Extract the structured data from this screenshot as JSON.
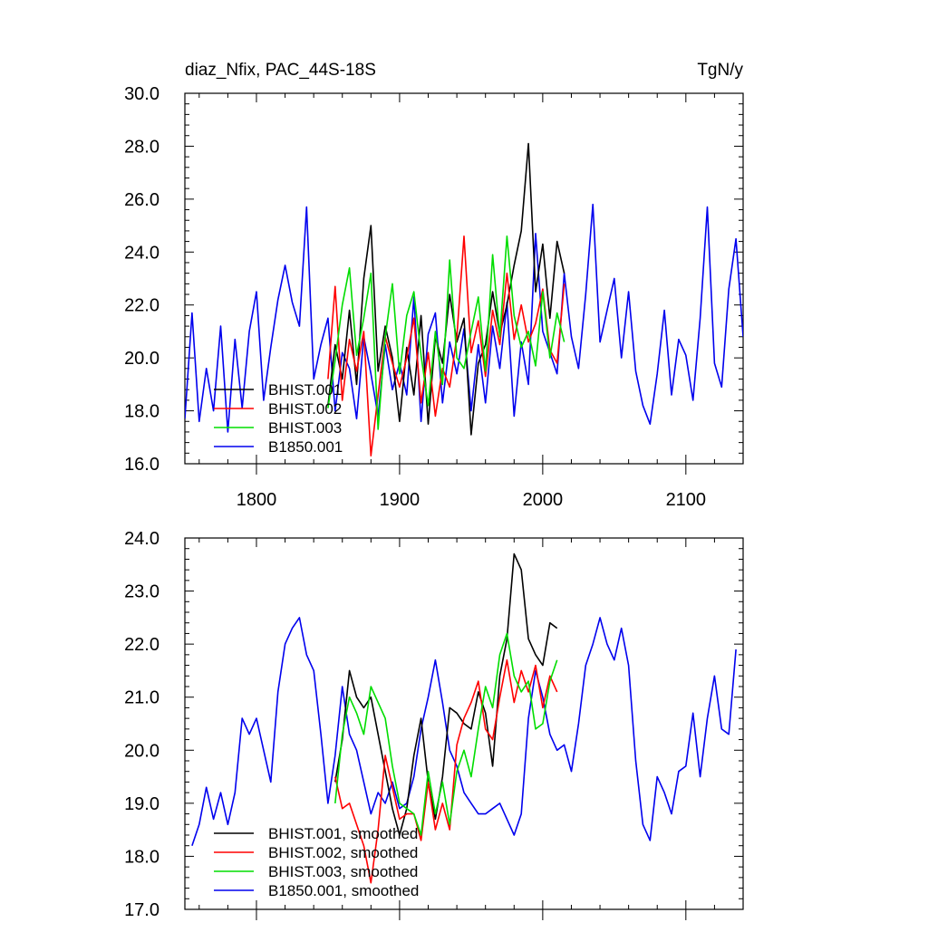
{
  "chart_data": [
    {
      "type": "line",
      "title": "diaz_Nfix, PAC_44S-18S",
      "units": "TgN/y",
      "xlim": [
        1750,
        2140
      ],
      "ylim": [
        16.0,
        30.0
      ],
      "xticks": [
        1800,
        1900,
        2000,
        2100
      ],
      "xtick_labels": [
        "1800",
        "1900",
        "2000",
        "2100"
      ],
      "yticks": [
        16,
        18,
        20,
        22,
        24,
        26,
        28,
        30
      ],
      "ytick_labels": [
        "16.0",
        "18.0",
        "20.0",
        "22.0",
        "24.0",
        "26.0",
        "28.0",
        "30.0"
      ],
      "legend": [
        "BHIST.001",
        "BHIST.002",
        "BHIST.003",
        "B1850.001"
      ],
      "legend_position": "bottom-left",
      "series": [
        {
          "name": "BHIST.001",
          "color": "#000000",
          "x": [
            1850,
            1855,
            1860,
            1865,
            1870,
            1875,
            1880,
            1885,
            1890,
            1895,
            1900,
            1905,
            1910,
            1915,
            1920,
            1925,
            1930,
            1935,
            1940,
            1945,
            1950,
            1955,
            1960,
            1965,
            1970,
            1975,
            1980,
            1985,
            1990,
            1995,
            2000,
            2005,
            2010,
            2015
          ],
          "y": [
            18.2,
            20.5,
            19.2,
            21.8,
            19.0,
            23.0,
            25.0,
            19.5,
            21.2,
            20.0,
            17.6,
            20.4,
            18.6,
            21.6,
            17.5,
            20.8,
            19.8,
            22.4,
            20.6,
            21.5,
            17.1,
            19.8,
            20.5,
            22.5,
            20.9,
            22.0,
            23.5,
            24.8,
            28.1,
            22.5,
            24.3,
            21.5,
            24.4,
            23.2
          ]
        },
        {
          "name": "BHIST.002",
          "color": "#ff0000",
          "x": [
            1850,
            1855,
            1860,
            1865,
            1870,
            1875,
            1880,
            1885,
            1890,
            1895,
            1900,
            1905,
            1910,
            1915,
            1920,
            1925,
            1930,
            1935,
            1940,
            1945,
            1950,
            1955,
            1960,
            1965,
            1970,
            1975,
            1980,
            1985,
            1990,
            1995,
            2000,
            2005,
            2010,
            2015
          ],
          "y": [
            19.2,
            22.7,
            18.4,
            20.7,
            19.5,
            21.0,
            16.3,
            18.6,
            20.8,
            19.8,
            18.9,
            20.0,
            21.5,
            18.3,
            20.2,
            17.8,
            19.6,
            18.9,
            20.8,
            24.6,
            20.2,
            21.4,
            19.3,
            21.8,
            20.5,
            23.2,
            20.7,
            22.0,
            20.6,
            21.3,
            22.6,
            20.3,
            19.8,
            22.8
          ]
        },
        {
          "name": "BHIST.003",
          "color": "#00dd00",
          "x": [
            1850,
            1855,
            1860,
            1865,
            1870,
            1875,
            1880,
            1885,
            1890,
            1895,
            1900,
            1905,
            1910,
            1915,
            1920,
            1925,
            1930,
            1935,
            1940,
            1945,
            1950,
            1955,
            1960,
            1965,
            1970,
            1975,
            1980,
            1985,
            1990,
            1995,
            2000,
            2005,
            2010,
            2015
          ],
          "y": [
            18.1,
            19.9,
            22.0,
            23.4,
            20.1,
            21.5,
            23.2,
            17.3,
            20.8,
            22.8,
            19.4,
            21.6,
            22.5,
            20.1,
            18.2,
            21.0,
            19.0,
            23.7,
            20.0,
            19.6,
            21.0,
            22.3,
            19.5,
            23.9,
            20.8,
            24.6,
            21.6,
            20.4,
            21.0,
            19.7,
            22.5,
            20.0,
            21.7,
            20.6
          ]
        },
        {
          "name": "B1850.001",
          "color": "#0000ee",
          "x": [
            1750,
            1755,
            1760,
            1765,
            1770,
            1775,
            1780,
            1785,
            1790,
            1795,
            1800,
            1805,
            1810,
            1815,
            1820,
            1825,
            1830,
            1835,
            1840,
            1845,
            1850,
            1855,
            1860,
            1865,
            1870,
            1875,
            1880,
            1885,
            1890,
            1895,
            1900,
            1905,
            1910,
            1915,
            1920,
            1925,
            1930,
            1935,
            1940,
            1945,
            1950,
            1955,
            1960,
            1965,
            1970,
            1975,
            1980,
            1985,
            1990,
            1995,
            2000,
            2005,
            2010,
            2015,
            2020,
            2025,
            2030,
            2035,
            2040,
            2045,
            2050,
            2055,
            2060,
            2065,
            2070,
            2075,
            2080,
            2085,
            2090,
            2095,
            2100,
            2105,
            2110,
            2115,
            2120,
            2125,
            2130,
            2135,
            2140
          ],
          "y": [
            17.7,
            21.7,
            17.6,
            19.6,
            18.0,
            21.2,
            17.2,
            20.7,
            18.1,
            21.0,
            22.5,
            18.4,
            20.4,
            22.2,
            23.5,
            22.1,
            21.2,
            25.7,
            19.2,
            20.5,
            21.5,
            18.0,
            20.2,
            19.6,
            17.7,
            20.8,
            19.4,
            17.8,
            20.5,
            18.8,
            19.8,
            18.6,
            22.3,
            17.6,
            20.9,
            21.7,
            18.3,
            20.6,
            19.4,
            21.1,
            18.0,
            20.5,
            18.3,
            21.2,
            19.6,
            22.1,
            17.8,
            20.6,
            19.0,
            24.7,
            21.0,
            20.2,
            19.4,
            23.2,
            20.8,
            19.6,
            22.4,
            25.8,
            20.6,
            21.8,
            23.0,
            20.0,
            22.5,
            19.5,
            18.2,
            17.5,
            19.4,
            21.8,
            18.6,
            20.7,
            20.1,
            18.4,
            21.5,
            25.7,
            19.8,
            18.9,
            22.6,
            24.5,
            20.8
          ]
        }
      ]
    },
    {
      "type": "line",
      "xlim": [
        1750,
        2140
      ],
      "ylim": [
        17.0,
        24.0
      ],
      "xticks": [
        1800,
        1900,
        2000,
        2100
      ],
      "yticks": [
        17,
        18,
        19,
        20,
        21,
        22,
        23,
        24
      ],
      "ytick_labels": [
        "17.0",
        "18.0",
        "19.0",
        "20.0",
        "21.0",
        "22.0",
        "23.0",
        "24.0"
      ],
      "legend": [
        "BHIST.001, smoothed",
        "BHIST.002, smoothed",
        "BHIST.003, smoothed",
        "B1850.001, smoothed"
      ],
      "legend_position": "bottom-left",
      "series": [
        {
          "name": "BHIST.001, smoothed",
          "color": "#000000",
          "x": [
            1855,
            1860,
            1865,
            1870,
            1875,
            1880,
            1885,
            1890,
            1895,
            1900,
            1905,
            1910,
            1915,
            1920,
            1925,
            1930,
            1935,
            1940,
            1945,
            1950,
            1955,
            1960,
            1965,
            1970,
            1975,
            1980,
            1985,
            1990,
            1995,
            2000,
            2005,
            2010
          ],
          "y": [
            19.4,
            20.2,
            21.5,
            21.0,
            20.8,
            21.0,
            20.3,
            19.6,
            18.9,
            18.4,
            18.9,
            19.9,
            20.6,
            19.4,
            18.7,
            19.5,
            20.8,
            20.7,
            20.5,
            20.4,
            21.1,
            20.7,
            19.7,
            21.4,
            22.1,
            23.7,
            23.4,
            22.1,
            21.8,
            21.6,
            22.4,
            22.3
          ]
        },
        {
          "name": "BHIST.002, smoothed",
          "color": "#ff0000",
          "x": [
            1855,
            1860,
            1865,
            1870,
            1875,
            1880,
            1885,
            1890,
            1895,
            1900,
            1905,
            1910,
            1915,
            1920,
            1925,
            1930,
            1935,
            1940,
            1945,
            1950,
            1955,
            1960,
            1965,
            1970,
            1975,
            1980,
            1985,
            1990,
            1995,
            2000,
            2005,
            2010
          ],
          "y": [
            19.5,
            18.9,
            19.0,
            18.6,
            18.2,
            17.5,
            18.5,
            19.9,
            19.3,
            18.7,
            18.8,
            18.8,
            18.3,
            19.4,
            18.5,
            19.0,
            18.5,
            20.1,
            20.6,
            20.9,
            21.3,
            20.4,
            20.2,
            21.0,
            21.7,
            20.9,
            21.5,
            21.1,
            21.6,
            20.8,
            21.4,
            21.1
          ]
        },
        {
          "name": "BHIST.003, smoothed",
          "color": "#00dd00",
          "x": [
            1855,
            1860,
            1865,
            1870,
            1875,
            1880,
            1885,
            1890,
            1895,
            1900,
            1905,
            1910,
            1915,
            1920,
            1925,
            1930,
            1935,
            1940,
            1945,
            1950,
            1955,
            1960,
            1965,
            1970,
            1975,
            1980,
            1985,
            1990,
            1995,
            2000,
            2005,
            2010
          ],
          "y": [
            19.0,
            20.3,
            21.0,
            20.7,
            20.3,
            21.2,
            20.9,
            20.6,
            19.7,
            19.0,
            18.9,
            18.8,
            18.4,
            19.6,
            18.8,
            19.4,
            18.6,
            19.6,
            20.0,
            19.5,
            20.4,
            21.2,
            20.8,
            21.8,
            22.2,
            21.4,
            21.1,
            21.3,
            20.4,
            20.5,
            21.3,
            21.7
          ]
        },
        {
          "name": "B1850.001, smoothed",
          "color": "#0000ee",
          "x": [
            1755,
            1760,
            1765,
            1770,
            1775,
            1780,
            1785,
            1790,
            1795,
            1800,
            1805,
            1810,
            1815,
            1820,
            1825,
            1830,
            1835,
            1840,
            1845,
            1850,
            1855,
            1860,
            1865,
            1870,
            1875,
            1880,
            1885,
            1890,
            1895,
            1900,
            1905,
            1910,
            1915,
            1920,
            1925,
            1930,
            1935,
            1940,
            1945,
            1950,
            1955,
            1960,
            1965,
            1970,
            1975,
            1980,
            1985,
            1990,
            1995,
            2000,
            2005,
            2010,
            2015,
            2020,
            2025,
            2030,
            2035,
            2040,
            2045,
            2050,
            2055,
            2060,
            2065,
            2070,
            2075,
            2080,
            2085,
            2090,
            2095,
            2100,
            2105,
            2110,
            2115,
            2120,
            2125,
            2130,
            2135
          ],
          "y": [
            18.2,
            18.6,
            19.3,
            18.7,
            19.2,
            18.6,
            19.2,
            20.6,
            20.3,
            20.6,
            20.0,
            19.4,
            21.1,
            22.0,
            22.3,
            22.5,
            21.8,
            21.5,
            20.3,
            19.0,
            19.9,
            21.2,
            20.3,
            20.0,
            19.4,
            18.8,
            19.2,
            19.0,
            19.4,
            18.9,
            19.0,
            19.5,
            20.4,
            21.0,
            21.7,
            20.9,
            20.0,
            19.7,
            19.2,
            19.0,
            18.8,
            18.8,
            18.9,
            19.0,
            18.7,
            18.4,
            18.8,
            20.6,
            21.5,
            21.0,
            20.3,
            20.0,
            20.1,
            19.6,
            20.5,
            21.6,
            22.0,
            22.5,
            22.0,
            21.7,
            22.3,
            21.6,
            19.8,
            18.6,
            18.3,
            19.5,
            19.2,
            18.8,
            19.6,
            19.7,
            20.7,
            19.5,
            20.6,
            21.4,
            20.4,
            20.3,
            21.9
          ]
        }
      ]
    }
  ]
}
